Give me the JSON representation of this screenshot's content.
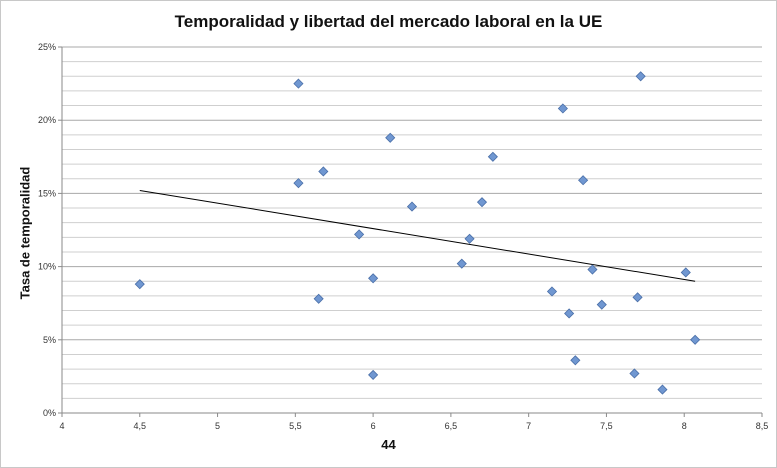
{
  "chart_data": {
    "type": "scatter",
    "title": "Temporalidad y libertad del mercado laboral en la UE",
    "xlabel": "44",
    "ylabel": "Tasa de temporalidad",
    "xlim": [
      4,
      8.5
    ],
    "ylim": [
      0,
      25
    ],
    "x_ticks": [
      4,
      4.5,
      5,
      5.5,
      6,
      6.5,
      7,
      7.5,
      8,
      8.5
    ],
    "x_tick_labels": [
      "4",
      "4,5",
      "5",
      "5,5",
      "6",
      "6,5",
      "7",
      "7,5",
      "8",
      "8,5"
    ],
    "y_ticks": [
      0,
      5,
      10,
      15,
      20,
      25
    ],
    "y_tick_labels": [
      "0%",
      "5%",
      "10%",
      "15%",
      "20%",
      "25%"
    ],
    "y_minor_step": 1,
    "grid": true,
    "marker_color": "#7097D1",
    "marker_edge_color": "#4A6FA8",
    "series": [
      {
        "points": [
          {
            "x": 4.5,
            "y": 8.8
          },
          {
            "x": 5.52,
            "y": 22.5
          },
          {
            "x": 5.52,
            "y": 15.7
          },
          {
            "x": 5.65,
            "y": 7.8
          },
          {
            "x": 5.68,
            "y": 16.5
          },
          {
            "x": 5.91,
            "y": 12.2
          },
          {
            "x": 6.0,
            "y": 9.2
          },
          {
            "x": 6.0,
            "y": 2.6
          },
          {
            "x": 6.11,
            "y": 18.8
          },
          {
            "x": 6.25,
            "y": 14.1
          },
          {
            "x": 6.57,
            "y": 10.2
          },
          {
            "x": 6.62,
            "y": 11.9
          },
          {
            "x": 6.7,
            "y": 14.4
          },
          {
            "x": 6.77,
            "y": 17.5
          },
          {
            "x": 7.15,
            "y": 8.3
          },
          {
            "x": 7.22,
            "y": 20.8
          },
          {
            "x": 7.26,
            "y": 6.8
          },
          {
            "x": 7.3,
            "y": 3.6
          },
          {
            "x": 7.35,
            "y": 15.9
          },
          {
            "x": 7.41,
            "y": 9.8
          },
          {
            "x": 7.47,
            "y": 7.4
          },
          {
            "x": 7.68,
            "y": 2.7
          },
          {
            "x": 7.7,
            "y": 7.9
          },
          {
            "x": 7.72,
            "y": 23.0
          },
          {
            "x": 7.86,
            "y": 1.6
          },
          {
            "x": 8.01,
            "y": 9.6
          },
          {
            "x": 8.07,
            "y": 5.0
          }
        ]
      }
    ],
    "trendline": {
      "type": "linear",
      "color": "#000000",
      "from": {
        "x": 4.5,
        "y": 15.2
      },
      "to": {
        "x": 8.07,
        "y": 9.0
      }
    }
  }
}
